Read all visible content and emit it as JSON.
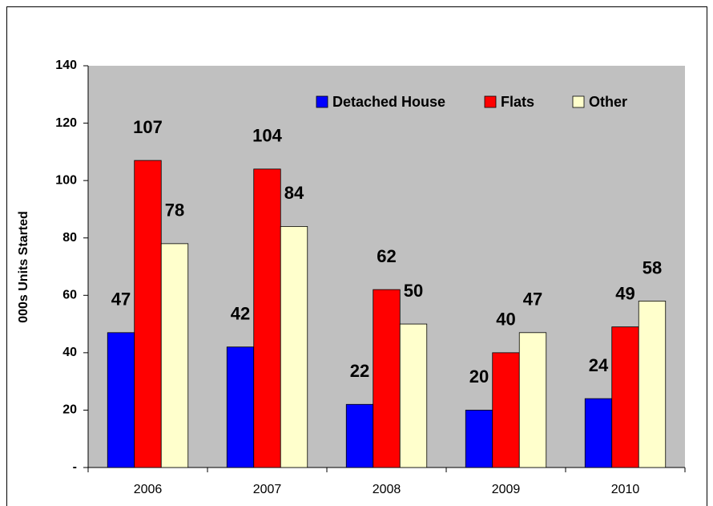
{
  "chart_data": {
    "type": "bar",
    "y_label": "000s Units Started",
    "categories": [
      "2006",
      "2007",
      "2008",
      "2009",
      "2010"
    ],
    "series": [
      {
        "name": "Detached House",
        "color": "#0000ff",
        "values": [
          47,
          42,
          22,
          20,
          24
        ]
      },
      {
        "name": "Flats",
        "color": "#ff0000",
        "values": [
          107,
          104,
          62,
          40,
          49
        ]
      },
      {
        "name": "Other",
        "color": "#ffffcc",
        "values": [
          78,
          84,
          50,
          47,
          58
        ]
      }
    ],
    "ylim": [
      0,
      140
    ],
    "yticks": [
      {
        "value": 0,
        "label": "-"
      },
      20,
      40,
      60,
      80,
      100,
      120,
      140
    ],
    "grid": false,
    "legend": "top-right",
    "plot_background": "#c0c0c0"
  }
}
